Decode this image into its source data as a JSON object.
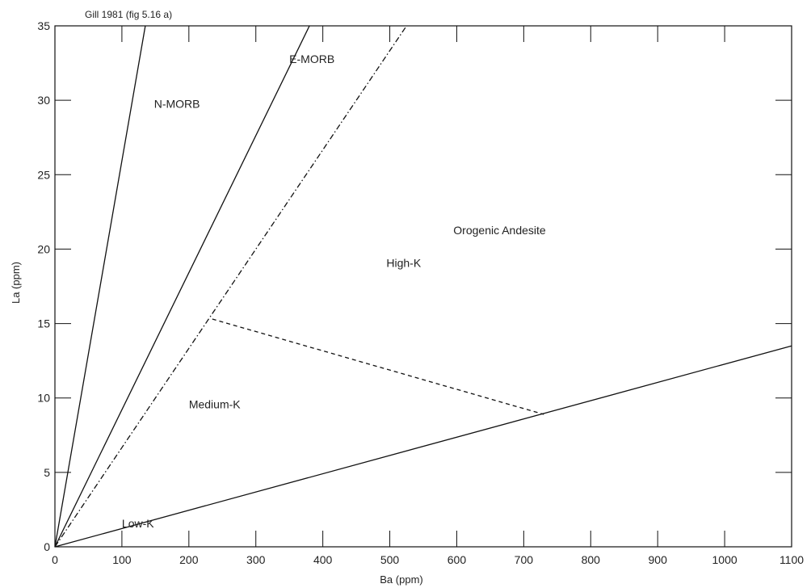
{
  "chart_data": {
    "type": "line",
    "title": "Gill 1981 (fig 5.16 a)",
    "xlabel": "Ba (ppm)",
    "ylabel": "La (ppm)",
    "xlim": [
      0,
      1100
    ],
    "ylim": [
      0,
      35
    ],
    "x_ticks": [
      0,
      100,
      200,
      300,
      400,
      500,
      600,
      700,
      800,
      900,
      1000,
      1100
    ],
    "y_ticks": [
      0,
      5,
      10,
      15,
      20,
      25,
      30,
      35
    ],
    "grid": false,
    "series": [
      {
        "style": "solid",
        "points": [
          [
            0,
            0
          ],
          [
            135,
            35
          ]
        ]
      },
      {
        "style": "solid",
        "points": [
          [
            0,
            0
          ],
          [
            380,
            35
          ]
        ]
      },
      {
        "style": "dashdot",
        "points": [
          [
            0,
            0
          ],
          [
            525,
            35
          ]
        ]
      },
      {
        "style": "solid",
        "points": [
          [
            0,
            0
          ],
          [
            1100,
            13.5
          ]
        ]
      },
      {
        "style": "dashed",
        "points": [
          [
            235,
            15.3
          ],
          [
            730,
            8.9
          ]
        ]
      }
    ],
    "annotations": [
      {
        "text": "N-MORB",
        "x": 148,
        "y": 29.5
      },
      {
        "text": "E-MORB",
        "x": 350,
        "y": 32.5
      },
      {
        "text": "Orogenic Andesite",
        "x": 595,
        "y": 21.0
      },
      {
        "text": "High-K",
        "x": 495,
        "y": 18.8
      },
      {
        "text": "Medium-K",
        "x": 200,
        "y": 9.3
      },
      {
        "text": "Low-K",
        "x": 100,
        "y": 1.3
      }
    ],
    "colors": {
      "line": "#111111",
      "text": "#222222",
      "background": "#ffffff"
    }
  }
}
